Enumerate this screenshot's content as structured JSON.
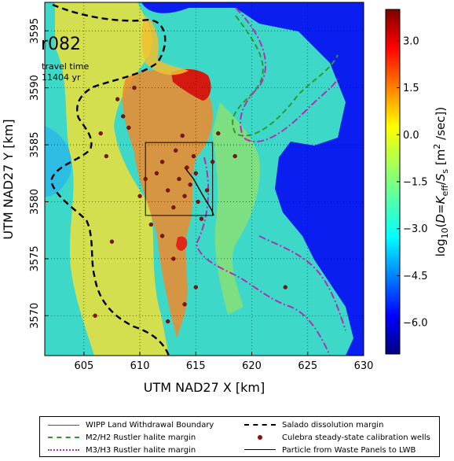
{
  "chart_data": {
    "type": "heatmap",
    "title": "",
    "run_label": "r082",
    "annotation_lines": [
      "travel time",
      "11404 yr"
    ],
    "xlabel": "UTM NAD27 X [km]",
    "ylabel": "UTM NAD27 Y [km]",
    "xlim": [
      601.5,
      630
    ],
    "ylim": [
      3566.5,
      3597.5
    ],
    "xticks": [
      605,
      610,
      615,
      620,
      625,
      630
    ],
    "yticks": [
      3570,
      3575,
      3580,
      3585,
      3590,
      3595
    ],
    "grid": true,
    "colorbar": {
      "label": "log10(D = K_eff / S_s [m^2/sec])",
      "range": [
        -7.0,
        4.0
      ],
      "ticks": [
        3.0,
        1.5,
        0.0,
        -1.5,
        -3.0,
        -4.5,
        -6.0
      ],
      "tick_labels": [
        "3.0",
        "1.5",
        "0.0",
        "−1.5",
        "−3.0",
        "−4.5",
        "−6.0"
      ],
      "colormap": "jet"
    },
    "wipp_boundary": {
      "x0": 610.5,
      "x1": 616.5,
      "y0": 3578.8,
      "y1": 3585.2
    },
    "calibration_wells": [
      [
        606.0,
        3570.0
      ],
      [
        606.5,
        3586.0
      ],
      [
        607.0,
        3584.0
      ],
      [
        607.5,
        3576.5
      ],
      [
        608.0,
        3589.0
      ],
      [
        608.5,
        3587.5
      ],
      [
        609.0,
        3586.5
      ],
      [
        609.5,
        3590.0
      ],
      [
        610.0,
        3580.5
      ],
      [
        610.5,
        3582.0
      ],
      [
        611.0,
        3578.0
      ],
      [
        611.5,
        3582.5
      ],
      [
        612.0,
        3583.5
      ],
      [
        612.5,
        3581.0
      ],
      [
        613.0,
        3579.5
      ],
      [
        613.2,
        3584.5
      ],
      [
        613.5,
        3582.0
      ],
      [
        613.8,
        3585.8
      ],
      [
        614.0,
        3580.5
      ],
      [
        614.2,
        3583.0
      ],
      [
        614.5,
        3581.5
      ],
      [
        614.8,
        3584.0
      ],
      [
        615.0,
        3582.5
      ],
      [
        615.2,
        3580.0
      ],
      [
        615.5,
        3578.5
      ],
      [
        616.0,
        3581.0
      ],
      [
        616.5,
        3583.5
      ],
      [
        617.0,
        3586.0
      ],
      [
        618.5,
        3584.0
      ],
      [
        623.0,
        3572.5
      ],
      [
        612.0,
        3577.0
      ],
      [
        613.0,
        3575.0
      ],
      [
        614.0,
        3571.0
      ],
      [
        615.0,
        3572.5
      ],
      [
        612.5,
        3569.5
      ]
    ],
    "particle_path": [
      [
        614.0,
        3583.0
      ],
      [
        614.8,
        3582.0
      ],
      [
        615.6,
        3580.6
      ],
      [
        616.4,
        3579.3
      ],
      [
        616.6,
        3578.8
      ]
    ],
    "series": [
      {
        "name": "WIPP Land Withdrawal Boundary",
        "style": "solid-thin",
        "color": "#555555"
      },
      {
        "name": "M2/H2 Rustler halite margin",
        "style": "dashed",
        "color": "#2e9a2e"
      },
      {
        "name": "M3/H3 Rustler halite margin",
        "style": "dashdot",
        "color": "#b030b0"
      },
      {
        "name": "Salado dissolution margin",
        "style": "dashed-bold",
        "color": "#000000"
      },
      {
        "name": "Culebra steady-state calibration wells",
        "style": "marker",
        "color": "#8b1010"
      },
      {
        "name": "Particle from Waste Panels to LWB",
        "style": "solid",
        "color": "#000000"
      }
    ]
  }
}
